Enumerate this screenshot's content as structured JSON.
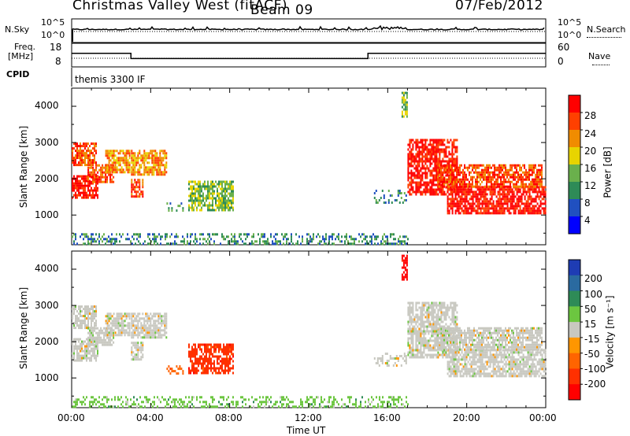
{
  "header": {
    "radar": "Christmas Valley West (fitACF)",
    "beam": "Beam 09",
    "date": "07/Feb/2012"
  },
  "panels": {
    "nsky": {
      "label": "N.Sky",
      "ticks": [
        "10^5",
        "10^0"
      ],
      "right_label": "N.Search",
      "right_ticks": [
        "10^5",
        "10^0"
      ]
    },
    "freq": {
      "label1": "Freq.",
      "label2": "[MHz]",
      "ticks": [
        "18",
        "8"
      ],
      "right_label": "Nave",
      "right_ticks": [
        "60",
        "0"
      ]
    },
    "cpid": {
      "label": "CPID",
      "text": "themis 3300 IF"
    },
    "slant_ylabel": "Slant Range [km]",
    "range_ticks": [
      "4000",
      "3000",
      "2000",
      "1000"
    ],
    "power": {
      "title": "Power [dB]",
      "ticks": [
        "28",
        "24",
        "20",
        "16",
        "12",
        "8",
        "4"
      ]
    },
    "velocity": {
      "title": "Velocity [m s⁻¹]",
      "ticks": [
        "200",
        "100",
        "50",
        "15",
        "-15",
        "-50",
        "-100",
        "-200"
      ]
    },
    "xlabel": "Time UT",
    "xticks": [
      "00:00",
      "04:00",
      "08:00",
      "12:00",
      "16:00",
      "20:00",
      "00:00"
    ]
  },
  "chart_data": {
    "type": "heatmap",
    "x_range_hours": [
      0,
      24
    ],
    "y_range_km": [
      180,
      4500
    ],
    "frequency_steps_mhz": [
      {
        "from": 0,
        "to": 3,
        "value": 14
      },
      {
        "from": 3,
        "to": 15,
        "value": 11
      },
      {
        "from": 15,
        "to": 24,
        "value": 14
      }
    ],
    "power_colors": [
      "#0000ff",
      "#2050c0",
      "#2e8b57",
      "#6ab04c",
      "#e8d400",
      "#f08c00",
      "#ff4000",
      "#ff0000"
    ],
    "velocity_colors": [
      "#1e3cb4",
      "#2a6aa0",
      "#2e8b57",
      "#6cc640",
      "#c8c8c0",
      "#ff9600",
      "#ff6400",
      "#ff3000",
      "#ff0000"
    ],
    "echo_regions": [
      {
        "t0": 0.0,
        "t1": 1.2,
        "r0": 2400,
        "r1": 3000,
        "power": 6,
        "vel": 4
      },
      {
        "t0": 0.0,
        "t1": 1.3,
        "r0": 1500,
        "r1": 2100,
        "power": 7,
        "vel": 4
      },
      {
        "t0": 0.8,
        "t1": 2.1,
        "r0": 1900,
        "r1": 2400,
        "power": 6,
        "vel": 4
      },
      {
        "t0": 1.7,
        "t1": 2.9,
        "r0": 2200,
        "r1": 2800,
        "power": 5,
        "vel": 4
      },
      {
        "t0": 3.0,
        "t1": 4.8,
        "r0": 2100,
        "r1": 2800,
        "power": 5,
        "vel": 4
      },
      {
        "t0": 3.0,
        "t1": 3.6,
        "r0": 1500,
        "r1": 2000,
        "power": 6,
        "vel": 4
      },
      {
        "t0": 4.8,
        "t1": 5.6,
        "r0": 1100,
        "r1": 1350,
        "power": 2,
        "vel": 6
      },
      {
        "t0": 5.9,
        "t1": 8.2,
        "r0": 1150,
        "r1": 1950,
        "power": 3,
        "vel": 7
      },
      {
        "t0": 0.0,
        "t1": 17.0,
        "r0": 220,
        "r1": 500,
        "power": 2,
        "vel": 3
      },
      {
        "t0": 15.3,
        "t1": 16.9,
        "r0": 1350,
        "r1": 1700,
        "power": 2,
        "vel": 4
      },
      {
        "t0": 16.7,
        "t1": 17.0,
        "r0": 3700,
        "r1": 4400,
        "power": 3,
        "vel": 8
      },
      {
        "t0": 17.0,
        "t1": 19.5,
        "r0": 1600,
        "r1": 3100,
        "power": 7,
        "vel": 4
      },
      {
        "t0": 19.0,
        "t1": 24.0,
        "r0": 1050,
        "r1": 1800,
        "power": 7,
        "vel": 4
      },
      {
        "t0": 18.5,
        "t1": 23.8,
        "r0": 1800,
        "r1": 2400,
        "power": 6,
        "vel": 4
      }
    ]
  }
}
